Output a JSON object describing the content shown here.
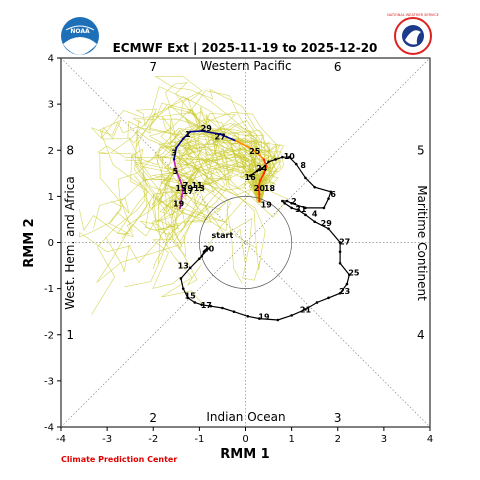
{
  "header": {
    "title": "ECMWF Ext | 2025-11-19 to 2025-12-20",
    "noaa_logo_text": "NOAA",
    "nws_logo_text": "NATIONAL WEATHER SERVICE"
  },
  "footer": {
    "credit": "Climate Prediction Center"
  },
  "chart_data": {
    "type": "line",
    "title": "ECMWF Ext | 2025-11-19 to 2025-12-20",
    "xlabel": "RMM 1",
    "ylabel": "RMM 2",
    "xlim": [
      -4,
      4
    ],
    "ylim": [
      -4,
      4
    ],
    "xticks": [
      -4,
      -3,
      -2,
      -1,
      0,
      1,
      2,
      3,
      4
    ],
    "yticks": [
      -4,
      -3,
      -2,
      -1,
      0,
      1,
      2,
      3,
      4
    ],
    "grid": false,
    "regions": {
      "top": "Western Pacific",
      "bottom": "Indian Ocean",
      "left": "West. Hem. and Africa",
      "right": "Maritime Continent"
    },
    "phases": [
      {
        "label": "1",
        "x": -3.8,
        "y": -2.0
      },
      {
        "label": "2",
        "x": -2.0,
        "y": -3.8
      },
      {
        "label": "3",
        "x": 2.0,
        "y": -3.8
      },
      {
        "label": "4",
        "x": 3.8,
        "y": -2.0
      },
      {
        "label": "5",
        "x": 3.8,
        "y": 2.0
      },
      {
        "label": "6",
        "x": 2.0,
        "y": 3.8
      },
      {
        "label": "7",
        "x": -2.0,
        "y": 3.8
      },
      {
        "label": "8",
        "x": -3.8,
        "y": 2.0
      }
    ],
    "colors": {
      "observed": "#000000",
      "mean_week1": "#ff2a00",
      "mean_week2": "#ff8c00",
      "mean_week3": "#00008b",
      "mean_week4": "#c020c0",
      "ensemble": "#c8c828",
      "circle": "#555555",
      "diagonals": "#888888"
    },
    "start_label": "start",
    "observed": {
      "points": [
        [
          -0.95,
          -0.3
        ],
        [
          -0.9,
          -0.2
        ],
        [
          -0.8,
          -0.13
        ],
        [
          -1.0,
          -0.35
        ],
        [
          -1.2,
          -0.55
        ],
        [
          -1.4,
          -0.78
        ],
        [
          -1.35,
          -1.0
        ],
        [
          -1.25,
          -1.2
        ],
        [
          -1.1,
          -1.3
        ],
        [
          -0.95,
          -1.35
        ],
        [
          -0.75,
          -1.38
        ],
        [
          -0.5,
          -1.42
        ],
        [
          -0.25,
          -1.5
        ],
        [
          0.05,
          -1.6
        ],
        [
          0.3,
          -1.65
        ],
        [
          0.7,
          -1.68
        ],
        [
          1.0,
          -1.58
        ],
        [
          1.3,
          -1.45
        ],
        [
          1.55,
          -1.3
        ],
        [
          1.8,
          -1.2
        ],
        [
          2.05,
          -1.1
        ],
        [
          2.2,
          -0.9
        ],
        [
          2.25,
          -0.7
        ],
        [
          2.05,
          -0.45
        ],
        [
          2.05,
          -0.2
        ],
        [
          2.05,
          0.0
        ],
        [
          1.8,
          0.3
        ],
        [
          1.5,
          0.45
        ],
        [
          1.3,
          0.6
        ],
        [
          1.15,
          0.7
        ],
        [
          1.0,
          0.75
        ],
        [
          0.85,
          0.85
        ],
        [
          0.8,
          0.9
        ],
        [
          0.9,
          0.9
        ],
        [
          1.0,
          0.85
        ],
        [
          1.3,
          0.75
        ],
        [
          1.7,
          0.75
        ],
        [
          1.8,
          0.95
        ],
        [
          1.85,
          1.1
        ],
        [
          1.5,
          1.2
        ],
        [
          1.3,
          1.4
        ],
        [
          1.1,
          1.7
        ],
        [
          0.95,
          1.85
        ],
        [
          0.8,
          1.85
        ],
        [
          0.65,
          1.8
        ],
        [
          0.5,
          1.75
        ],
        [
          0.35,
          1.6
        ],
        [
          0.25,
          1.55
        ],
        [
          0.1,
          1.45
        ]
      ],
      "labels": [
        {
          "text": "20",
          "x": -0.8,
          "y": -0.13
        },
        {
          "text": "13",
          "x": -1.35,
          "y": -0.5
        },
        {
          "text": "15",
          "x": -1.2,
          "y": -1.15
        },
        {
          "text": "17",
          "x": -0.85,
          "y": -1.35
        },
        {
          "text": "19",
          "x": 0.4,
          "y": -1.6
        },
        {
          "text": "21",
          "x": 1.3,
          "y": -1.45
        },
        {
          "text": "23",
          "x": 2.15,
          "y": -1.05
        },
        {
          "text": "25",
          "x": 2.35,
          "y": -0.65
        },
        {
          "text": "27",
          "x": 2.15,
          "y": 0.02
        },
        {
          "text": "29",
          "x": 1.75,
          "y": 0.42
        },
        {
          "text": "4",
          "x": 1.5,
          "y": 0.63
        },
        {
          "text": "6",
          "x": 1.9,
          "y": 1.05
        },
        {
          "text": "8",
          "x": 1.25,
          "y": 1.68
        },
        {
          "text": "10",
          "x": 0.95,
          "y": 1.87
        },
        {
          "text": "2",
          "x": 1.05,
          "y": 0.9
        },
        {
          "text": "31",
          "x": 1.2,
          "y": 0.73
        }
      ]
    },
    "ensemble_mean": {
      "points": [
        [
          0.3,
          0.9
        ],
        [
          0.3,
          1.05
        ],
        [
          0.28,
          1.2
        ],
        [
          0.32,
          1.35
        ],
        [
          0.4,
          1.5
        ],
        [
          0.45,
          1.65
        ],
        [
          0.4,
          1.8
        ],
        [
          0.3,
          1.9
        ],
        [
          0.1,
          2.05
        ],
        [
          -0.2,
          2.2
        ],
        [
          -0.55,
          2.35
        ],
        [
          -0.95,
          2.42
        ],
        [
          -1.2,
          2.4
        ],
        [
          -1.35,
          2.25
        ],
        [
          -1.5,
          2.05
        ],
        [
          -1.55,
          1.8
        ],
        [
          -1.5,
          1.55
        ],
        [
          -1.42,
          1.35
        ],
        [
          -1.35,
          1.15
        ],
        [
          -1.38,
          1.0
        ],
        [
          -1.4,
          0.85
        ],
        [
          -1.42,
          0.75
        ]
      ],
      "labels": [
        {
          "text": "19",
          "x": 0.45,
          "y": 0.82
        },
        {
          "text": "20",
          "x": 0.3,
          "y": 1.18
        },
        {
          "text": "18",
          "x": 0.52,
          "y": 1.18
        },
        {
          "text": "16",
          "x": 0.1,
          "y": 1.42
        },
        {
          "text": "24",
          "x": 0.35,
          "y": 1.62
        },
        {
          "text": "25",
          "x": 0.2,
          "y": 1.98
        },
        {
          "text": "27",
          "x": -0.55,
          "y": 2.3
        },
        {
          "text": "29",
          "x": -0.85,
          "y": 2.48
        },
        {
          "text": "1",
          "x": -1.25,
          "y": 2.35
        },
        {
          "text": "3",
          "x": -1.55,
          "y": 1.95
        },
        {
          "text": "5",
          "x": -1.52,
          "y": 1.55
        },
        {
          "text": "7",
          "x": -1.3,
          "y": 1.25
        },
        {
          "text": "9",
          "x": -1.2,
          "y": 1.18
        },
        {
          "text": "11",
          "x": -1.05,
          "y": 1.25
        },
        {
          "text": "13",
          "x": -1.0,
          "y": 1.18
        },
        {
          "text": "15",
          "x": -1.4,
          "y": 1.18
        },
        {
          "text": "17",
          "x": -1.25,
          "y": 1.12
        },
        {
          "text": "19",
          "x": -1.45,
          "y": 0.85
        }
      ]
    }
  }
}
